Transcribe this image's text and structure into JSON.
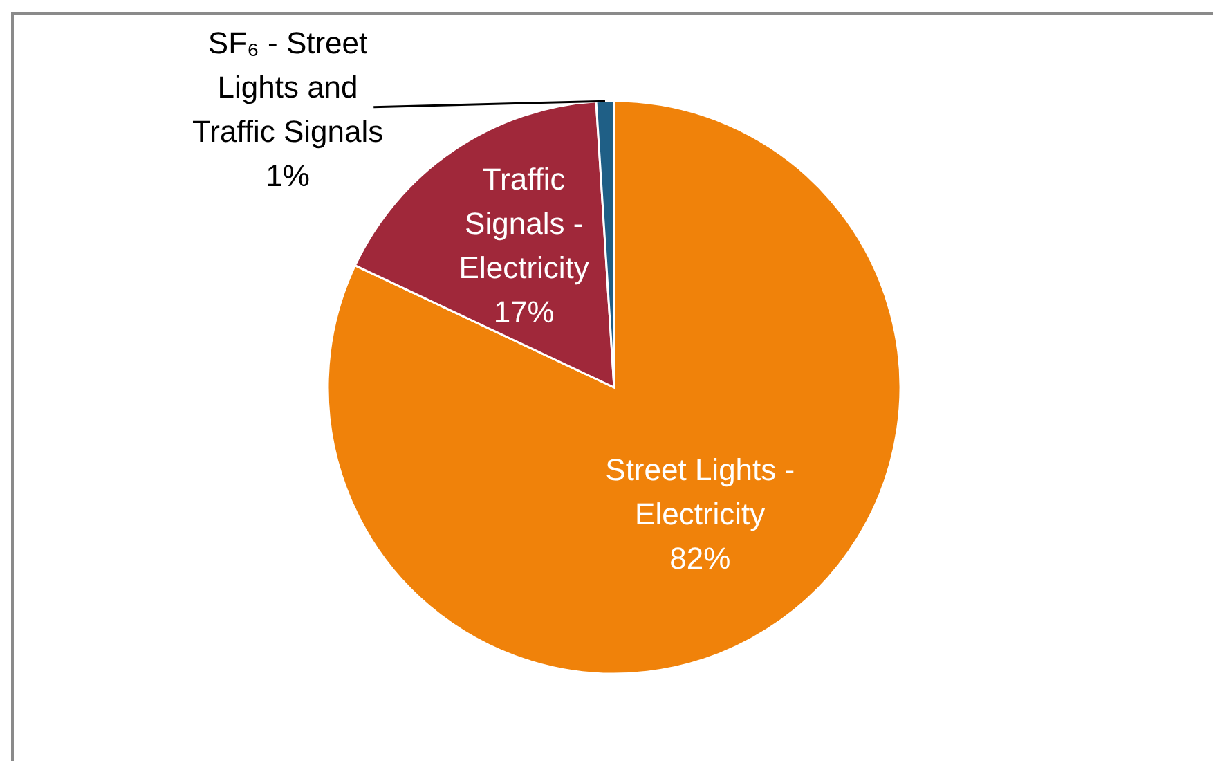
{
  "chart_data": {
    "type": "pie",
    "categories": [
      "Street Lights - Electricity",
      "Traffic Signals - Electricity",
      "SF₆ - Street Lights and Traffic Signals"
    ],
    "values": [
      82,
      17,
      1
    ],
    "colors": [
      "#f0820a",
      "#a0283a",
      "#1f5f86"
    ],
    "value_labels": [
      "82%",
      "17%",
      "1%"
    ]
  }
}
